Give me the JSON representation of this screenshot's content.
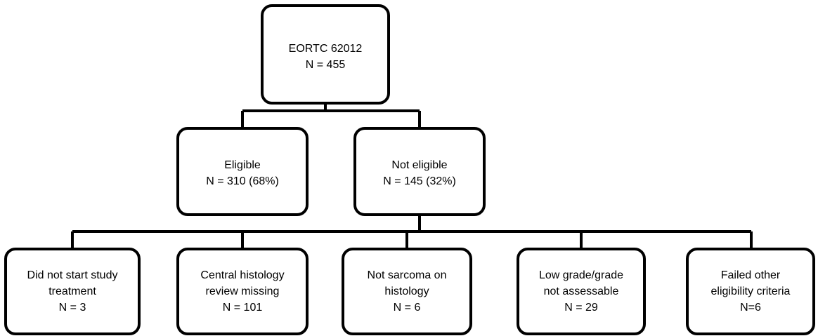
{
  "nodes": [
    {
      "lines": [
        "EORTC 62012",
        "N = 455"
      ]
    },
    {
      "lines": [
        "Eligible",
        "N = 310 (68%)"
      ]
    },
    {
      "lines": [
        "Not eligible",
        "N = 145 (32%)"
      ]
    },
    {
      "lines": [
        "Did not start study",
        "treatment",
        "N = 3"
      ]
    },
    {
      "lines": [
        "Central histology",
        "review missing",
        "N = 101"
      ]
    },
    {
      "lines": [
        "Not sarcoma on",
        "histology",
        "N = 6"
      ]
    },
    {
      "lines": [
        "Low grade/grade",
        "not assessable",
        "N = 29"
      ]
    },
    {
      "lines": [
        "Failed other",
        "eligibility criteria",
        "N=6"
      ]
    }
  ]
}
